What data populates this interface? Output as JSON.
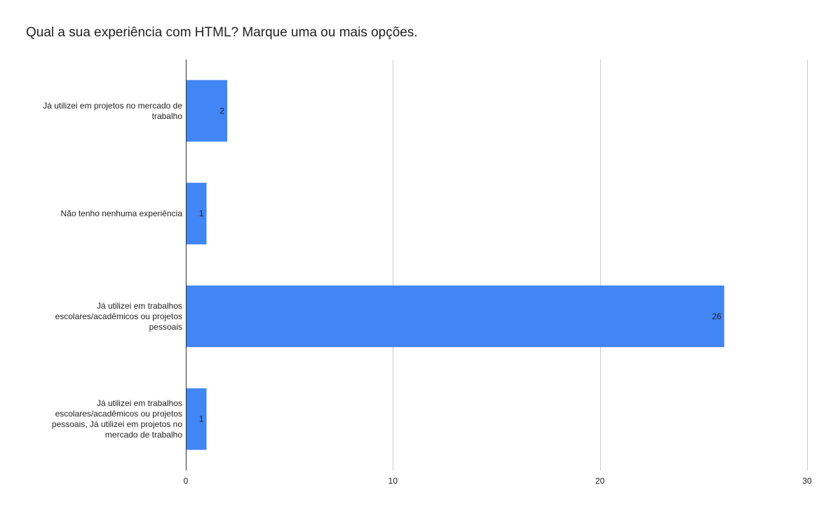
{
  "chart_data": {
    "type": "bar",
    "orientation": "horizontal",
    "title": "Qual a sua experiência com HTML? Marque uma ou mais opções.",
    "xlabel": "",
    "ylabel": "",
    "categories": [
      "Já utilizei em projetos no mercado de trabalho",
      "Não tenho nenhuma experiência",
      "Já utilizei em trabalhos escolares/acadêmicos ou projetos pessoais",
      "Já utilizei em trabalhos escolares/acadêmicos ou projetos pessoais, Já utilizei em projetos no mercado de trabalho"
    ],
    "category_label_lines": [
      [
        "Já utilizei em projetos no mercado de",
        "trabalho"
      ],
      [
        "Não tenho nenhuma experiência"
      ],
      [
        "Já utilizei em trabalhos",
        "escolares/acadêmicos ou projetos",
        "pessoais"
      ],
      [
        "Já utilizei em trabalhos",
        "escolares/acadêmicos ou projetos",
        "pessoais, Já utilizei em projetos no",
        "mercado de trabalho"
      ]
    ],
    "values": [
      2,
      1,
      26,
      1
    ],
    "data_labels": [
      "2",
      "1",
      "26",
      "1"
    ],
    "xlim": [
      0,
      30
    ],
    "x_ticks": [
      0,
      10,
      20,
      30
    ],
    "x_tick_labels": [
      "0",
      "10",
      "20",
      "30"
    ],
    "grid": true,
    "legend": false,
    "bar_color": "#4285f4",
    "grid_color": "#cccccc",
    "axis_color": "#333333",
    "text_color": "#222222"
  }
}
